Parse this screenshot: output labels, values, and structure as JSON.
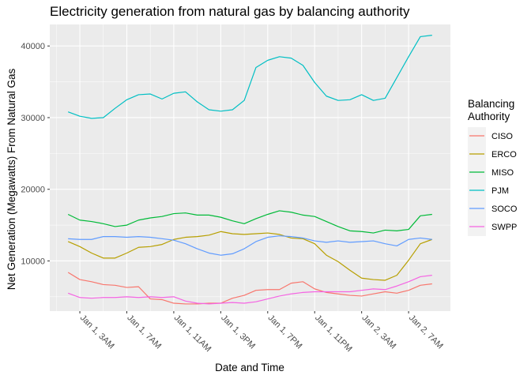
{
  "chart_data": {
    "type": "line",
    "title": "Electricity generation from natural gas by balancing authority",
    "xlabel": "Date and Time",
    "ylabel": "Net Generation (Megawatts) From Natural Gas",
    "x_ticks": [
      "Jan  1,  3AM",
      "Jan  1,  7AM",
      "Jan  1, 11AM",
      "Jan  1,  3PM",
      "Jan  1,  7PM",
      "Jan  1, 11PM",
      "Jan  2,  3AM",
      "Jan  2,  7AM"
    ],
    "y_ticks": [
      "10000",
      "20000",
      "30000",
      "40000"
    ],
    "x_hours": [
      0,
      1,
      2,
      3,
      4,
      5,
      6,
      7,
      8,
      9,
      10,
      11,
      12,
      13,
      14,
      15,
      16,
      17,
      18,
      19,
      20,
      21,
      22,
      23,
      24,
      25,
      26,
      27,
      28,
      29,
      30,
      31
    ],
    "x_start": "Jan 1, 2AM",
    "x_unit": "hours",
    "ylim": [
      3000,
      43000
    ],
    "grid": true,
    "legend_title": [
      "Balancing",
      "Authority"
    ],
    "legend_position": "right",
    "series": [
      {
        "name": "CISO",
        "color": "#F8766D",
        "values": [
          8400,
          7400,
          7100,
          6700,
          6600,
          6300,
          6400,
          4700,
          4600,
          4100,
          4000,
          4000,
          4100,
          4100,
          4800,
          5200,
          5900,
          6000,
          6000,
          6900,
          7100,
          6100,
          5600,
          5400,
          5200,
          5100,
          5400,
          5700,
          5500,
          5900,
          6600,
          6800
        ]
      },
      {
        "name": "ERCO",
        "color": "#B79F00",
        "values": [
          12700,
          12000,
          11100,
          10400,
          10400,
          11100,
          11900,
          12000,
          12300,
          13000,
          13300,
          13400,
          13600,
          14100,
          13800,
          13700,
          13800,
          13900,
          13700,
          13200,
          13100,
          12400,
          10800,
          9900,
          8700,
          7600,
          7400,
          7300,
          8000,
          10100,
          12400,
          13000
        ]
      },
      {
        "name": "MISO",
        "color": "#00BA38",
        "values": [
          16500,
          15700,
          15500,
          15200,
          14800,
          15000,
          15700,
          16000,
          16200,
          16600,
          16700,
          16400,
          16400,
          16100,
          15600,
          15200,
          15900,
          16500,
          17000,
          16800,
          16400,
          16200,
          15500,
          14800,
          14200,
          14100,
          13900,
          14300,
          14200,
          14400,
          16300,
          16500
        ]
      },
      {
        "name": "PJM",
        "color": "#00BFC4",
        "values": [
          30800,
          30200,
          29900,
          30000,
          31300,
          32500,
          33200,
          33300,
          32600,
          33400,
          33600,
          32200,
          31100,
          30900,
          31100,
          32400,
          37000,
          38000,
          38500,
          38300,
          37300,
          34900,
          33000,
          32400,
          32500,
          33200,
          32400,
          32700,
          35600,
          38500,
          41300,
          41500
        ]
      },
      {
        "name": "SOCO",
        "color": "#619CFF",
        "values": [
          13100,
          13000,
          13000,
          13400,
          13400,
          13300,
          13400,
          13300,
          13100,
          12900,
          12400,
          11700,
          11100,
          10800,
          11000,
          11700,
          12700,
          13300,
          13500,
          13400,
          13200,
          12800,
          12600,
          12800,
          12600,
          12700,
          12800,
          12400,
          12100,
          13000,
          13200,
          13000
        ]
      },
      {
        "name": "SWPP",
        "color": "#F564E3",
        "values": [
          5500,
          4900,
          4800,
          4900,
          4900,
          5000,
          4900,
          5000,
          4900,
          5000,
          4400,
          4100,
          4000,
          4100,
          4200,
          4100,
          4300,
          4700,
          5100,
          5400,
          5600,
          5700,
          5700,
          5700,
          5700,
          5900,
          6100,
          6000,
          6500,
          7100,
          7800,
          8000
        ]
      }
    ]
  }
}
